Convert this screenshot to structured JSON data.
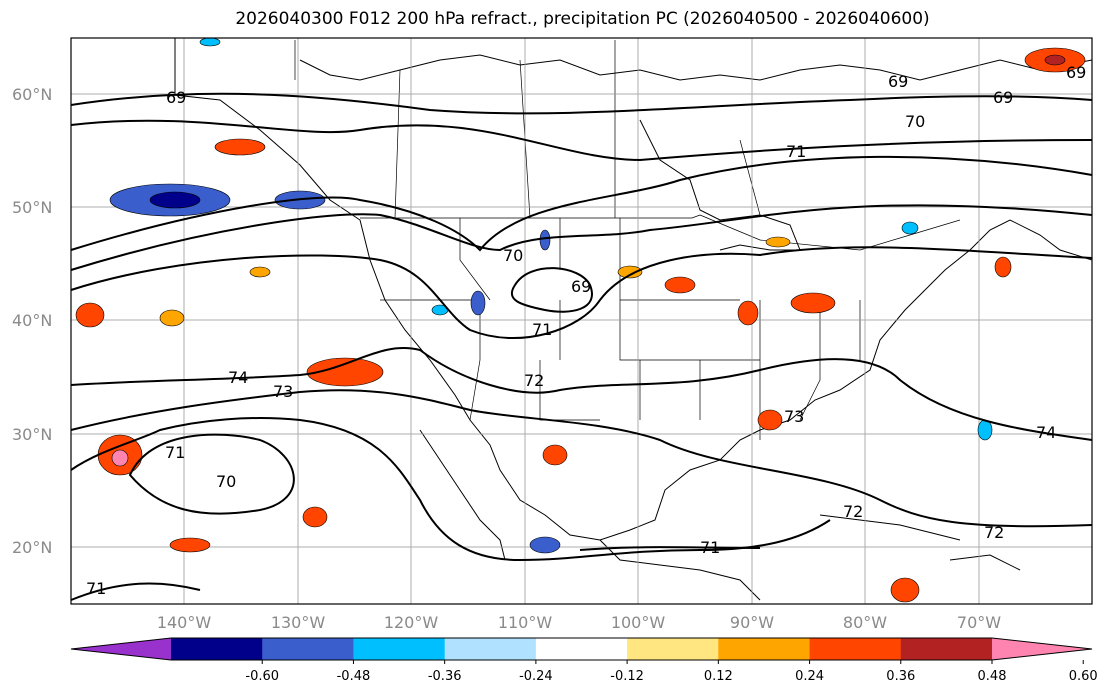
{
  "title": "2026040300 F012 200 hPa refract., precipitation PC (2026040500 - 2026040600)",
  "map": {
    "lat_labels": [
      "60°N",
      "50°N",
      "40°N",
      "30°N",
      "20°N"
    ],
    "lon_labels": [
      "140°W",
      "130°W",
      "120°W",
      "110°W",
      "100°W",
      "90°W",
      "80°W",
      "70°W"
    ],
    "contour_labels": [
      "69",
      "69",
      "69",
      "69",
      "70",
      "71",
      "70",
      "69",
      "71",
      "74",
      "73",
      "72",
      "73",
      "71",
      "70",
      "74",
      "72",
      "71",
      "72",
      "71"
    ]
  },
  "colorbar": {
    "ticks": [
      "-0.60",
      "-0.48",
      "-0.36",
      "-0.24",
      "-0.12",
      "0.12",
      "0.24",
      "0.36",
      "0.48",
      "0.60"
    ],
    "colors": [
      "#9932cc",
      "#00008b",
      "#3a5fcd",
      "#00bfff",
      "#b0e2ff",
      "#ffffff",
      "#ffe680",
      "#ffa500",
      "#ff4500",
      "#b22222",
      "#ff85b0"
    ]
  }
}
